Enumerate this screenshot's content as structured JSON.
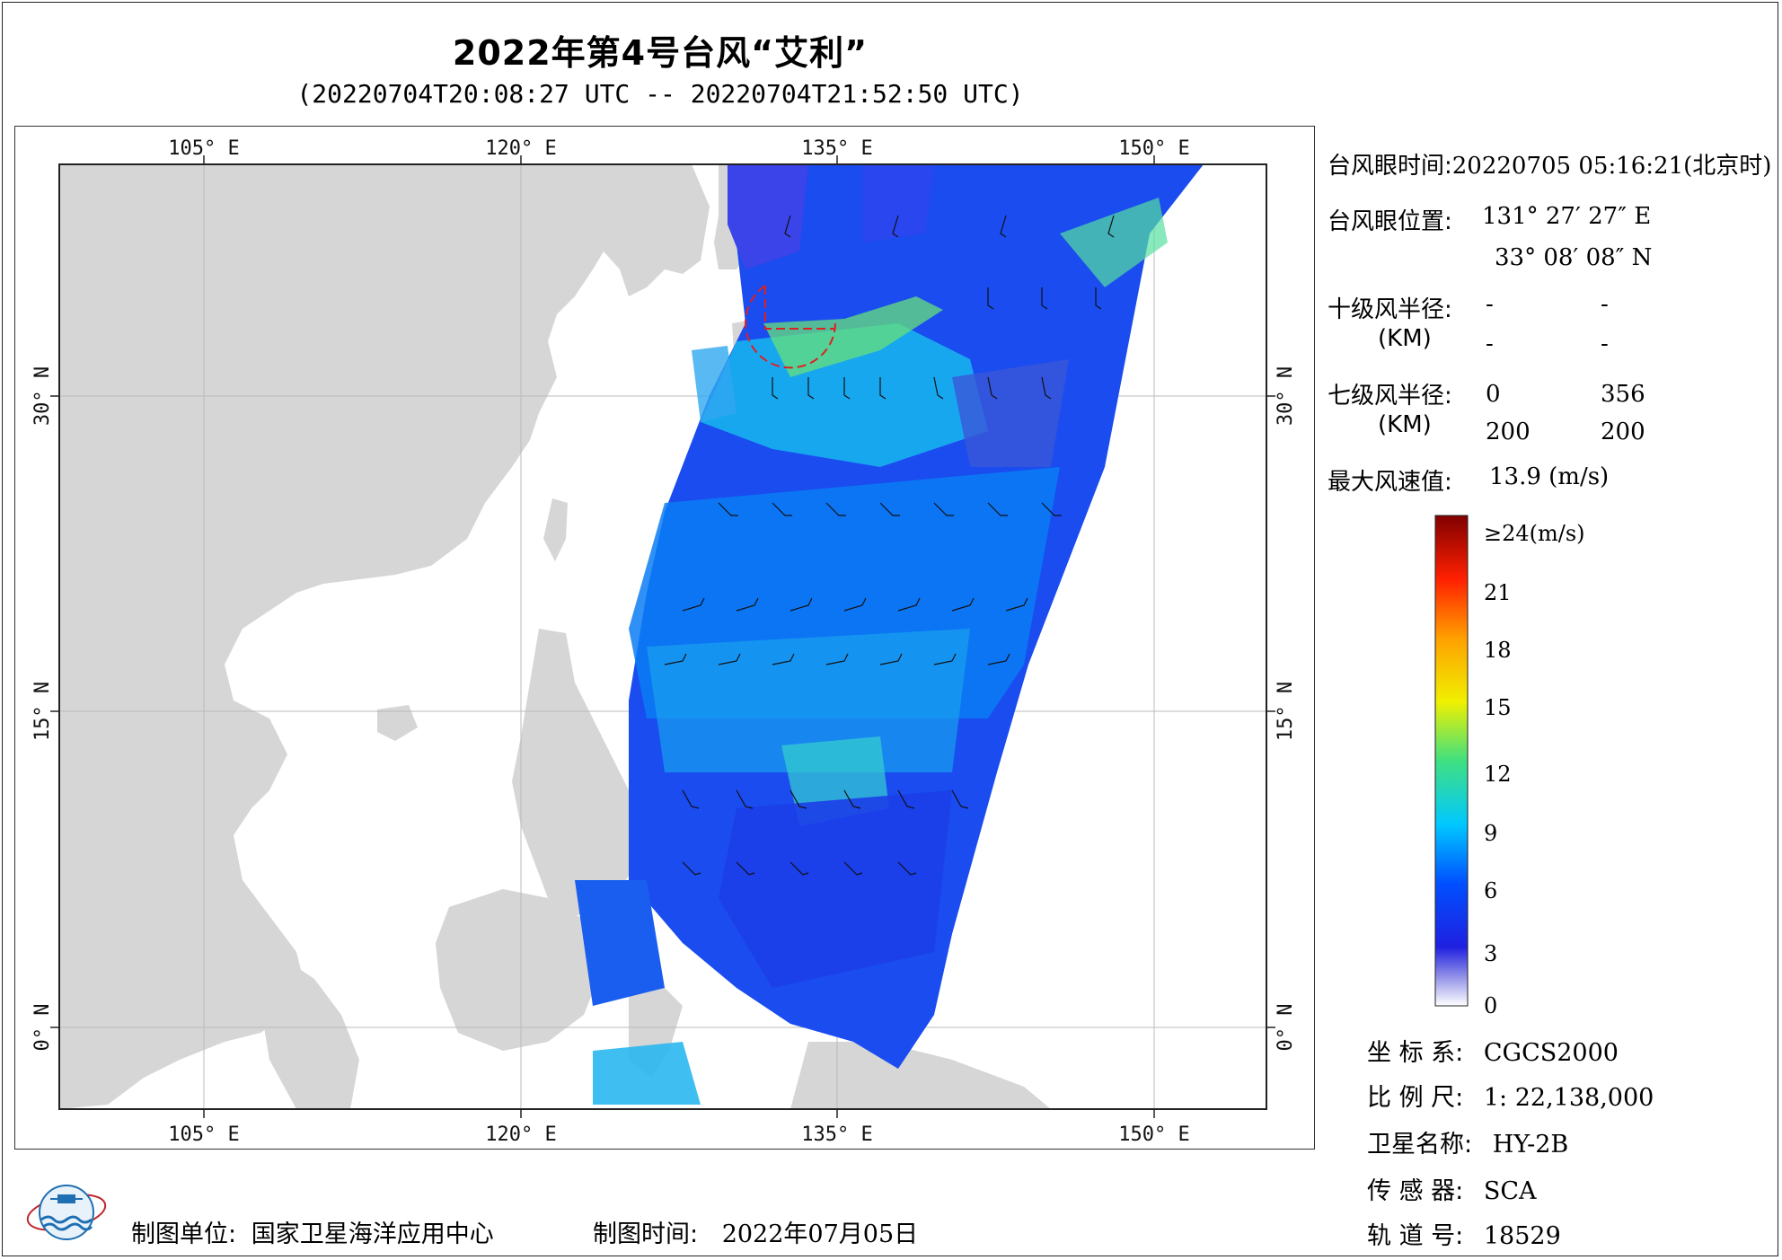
{
  "header": {
    "title": "2022年第4号台风“艾利”",
    "subtitle": "(20220704T20:08:27 UTC -- 20220704T21:52:50 UTC)"
  },
  "map": {
    "lon_ticks": [
      "105° E",
      "120° E",
      "135° E",
      "150° E"
    ],
    "lat_ticks": [
      "30° N",
      "15° N",
      "0° N"
    ],
    "colors": {
      "land": "#d6d6d6",
      "sea": "#ffffff",
      "grid": "#bbbbbb",
      "eye_circle": "#e02020"
    }
  },
  "typhoon_info": {
    "eye_time_label": "台风眼时间:",
    "eye_time_value": "20220705 05:16:21(北京时)",
    "eye_pos_label": "台风眼位置:",
    "eye_lon": "131° 27′ 27″ E",
    "eye_lat": "33° 08′ 08″ N",
    "r10_label": "十级风半径:",
    "r10_unit": "(KM)",
    "r10_values": [
      "-",
      "-",
      "-",
      "-"
    ],
    "r7_label": "七级风半径:",
    "r7_unit": "(KM)",
    "r7_values": [
      "0",
      "356",
      "200",
      "200"
    ],
    "max_wind_label": "最大风速值:",
    "max_wind_value": "13.9  (m/s)"
  },
  "colorbar": {
    "labels": [
      "≥24(m/s)",
      "21",
      "18",
      "15",
      "12",
      "9",
      "6",
      "3",
      "0"
    ]
  },
  "meta": {
    "coord_label": "坐 标 系:",
    "coord_value": "CGCS2000",
    "scale_label": "比 例 尺:",
    "scale_value": "1: 22,138,000",
    "sat_label": "卫星名称:",
    "sat_value": "HY-2B",
    "sensor_label": "传 感 器:",
    "sensor_value": "SCA",
    "orbit_label": "轨 道 号:",
    "orbit_value": "18529"
  },
  "footer": {
    "unit_label": "制图单位:",
    "unit_value": "国家卫星海洋应用中心",
    "time_label": "制图时间:",
    "time_value": "2022年07月05日"
  }
}
